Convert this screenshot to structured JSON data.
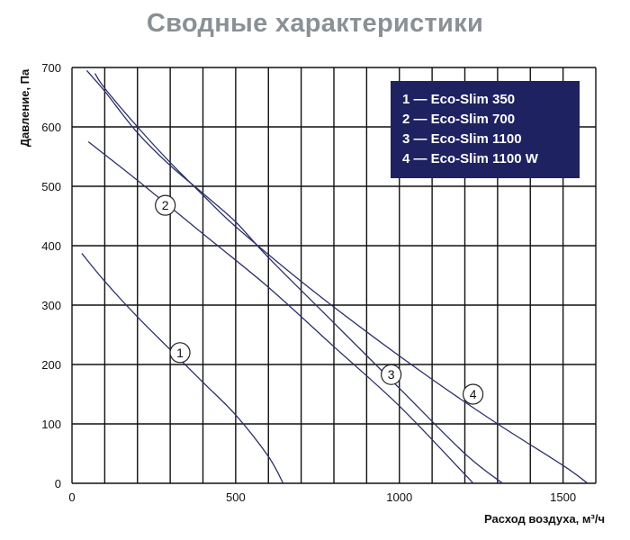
{
  "colors": {
    "title": "#8a9096",
    "grid": "#111111",
    "series_line": "#2b2f6b",
    "legend_bg": "#1f2260",
    "legend_text": "#ffffff"
  },
  "chart_data": {
    "type": "line",
    "title": "Сводные характеристики",
    "xlabel": "Расход воздуха, м³/ч",
    "ylabel": "Давление, Па",
    "xlim": [
      0,
      1600
    ],
    "ylim": [
      0,
      700
    ],
    "x_ticks": [
      0,
      500,
      1000,
      1500
    ],
    "y_ticks": [
      0,
      100,
      200,
      300,
      400,
      500,
      600,
      700
    ],
    "x_grid_step": 100,
    "y_grid_step": 100,
    "grid": true,
    "legend_position": "top-right",
    "legend": [
      "1 — Eco-Slim 350",
      "2 — Eco-Slim 700",
      "3 — Eco-Slim 1100",
      "4 — Eco-Slim 1100 W"
    ],
    "series": [
      {
        "marker": "1",
        "marker_at": [
          330,
          220
        ],
        "points": [
          [
            30,
            387
          ],
          [
            100,
            340
          ],
          [
            200,
            280
          ],
          [
            300,
            225
          ],
          [
            400,
            170
          ],
          [
            500,
            115
          ],
          [
            600,
            45
          ],
          [
            645,
            0
          ]
        ]
      },
      {
        "marker": "2",
        "marker_at": [
          285,
          468
        ],
        "points": [
          [
            50,
            575
          ],
          [
            200,
            510
          ],
          [
            400,
            420
          ],
          [
            600,
            330
          ],
          [
            800,
            230
          ],
          [
            1000,
            130
          ],
          [
            1200,
            15
          ],
          [
            1225,
            0
          ]
        ]
      },
      {
        "marker": "3",
        "marker_at": [
          975,
          183
        ],
        "points": [
          [
            45,
            695
          ],
          [
            100,
            660
          ],
          [
            200,
            590
          ],
          [
            300,
            535
          ],
          [
            400,
            488
          ],
          [
            500,
            440
          ],
          [
            600,
            380
          ],
          [
            800,
            270
          ],
          [
            1000,
            160
          ],
          [
            1200,
            50
          ],
          [
            1315,
            0
          ]
        ]
      },
      {
        "marker": "4",
        "marker_at": [
          1225,
          150
        ],
        "points": [
          [
            70,
            690
          ],
          [
            100,
            665
          ],
          [
            200,
            600
          ],
          [
            300,
            540
          ],
          [
            400,
            485
          ],
          [
            500,
            432
          ],
          [
            700,
            340
          ],
          [
            900,
            255
          ],
          [
            1100,
            175
          ],
          [
            1300,
            100
          ],
          [
            1500,
            30
          ],
          [
            1575,
            0
          ]
        ]
      }
    ]
  }
}
